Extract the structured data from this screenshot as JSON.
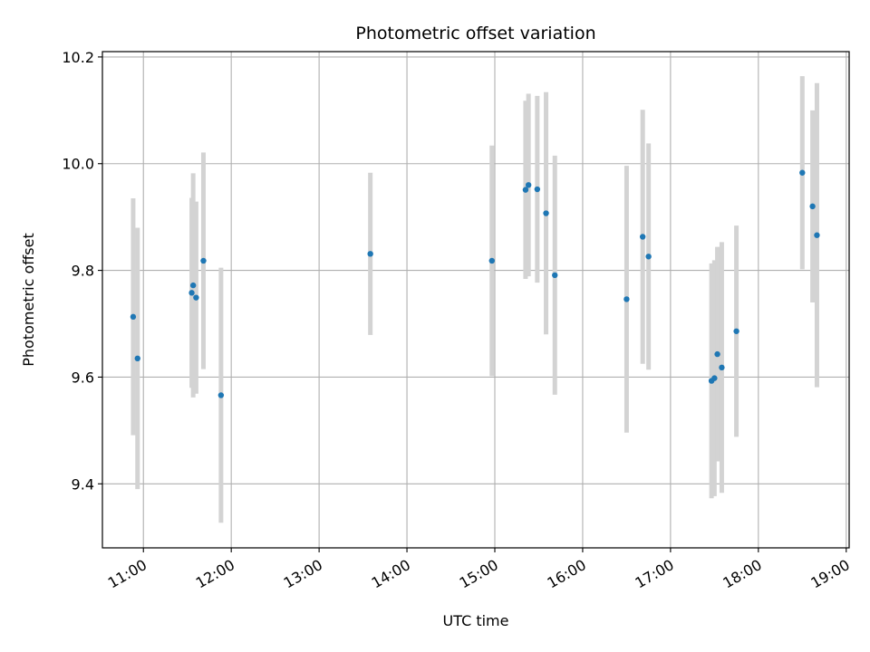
{
  "chart_data": {
    "type": "scatter",
    "title": "Photometric offset variation",
    "xlabel": "UTC time",
    "ylabel": "Photometric offset",
    "xlim": [
      "10:32",
      "19:02"
    ],
    "ylim": [
      9.28,
      10.21
    ],
    "x_ticks": [
      "11:00",
      "12:00",
      "13:00",
      "14:00",
      "15:00",
      "16:00",
      "17:00",
      "18:00",
      "19:00"
    ],
    "y_ticks": [
      9.4,
      9.6,
      9.8,
      10.0,
      10.2
    ],
    "y_tick_labels": [
      "9.4",
      "9.6",
      "9.8",
      "10.0",
      "10.2"
    ],
    "grid": true,
    "point_color": "#1f77b4",
    "errorbar_color": "#d3d3d3",
    "points": [
      {
        "x": "10:53",
        "y": 9.713,
        "yerr": 0.222
      },
      {
        "x": "10:56",
        "y": 9.635,
        "yerr": 0.245
      },
      {
        "x": "11:33",
        "y": 9.758,
        "yerr": 0.178
      },
      {
        "x": "11:34",
        "y": 9.772,
        "yerr": 0.21
      },
      {
        "x": "11:36",
        "y": 9.749,
        "yerr": 0.18
      },
      {
        "x": "11:41",
        "y": 9.818,
        "yerr": 0.203
      },
      {
        "x": "11:53",
        "y": 9.566,
        "yerr": 0.239
      },
      {
        "x": "13:35",
        "y": 9.831,
        "yerr": 0.152
      },
      {
        "x": "14:58",
        "y": 9.818,
        "yerr": 0.216
      },
      {
        "x": "15:21",
        "y": 9.951,
        "yerr": 0.167
      },
      {
        "x": "15:23",
        "y": 9.96,
        "yerr": 0.171
      },
      {
        "x": "15:29",
        "y": 9.952,
        "yerr": 0.175
      },
      {
        "x": "15:35",
        "y": 9.907,
        "yerr": 0.227
      },
      {
        "x": "15:41",
        "y": 9.791,
        "yerr": 0.224
      },
      {
        "x": "16:30",
        "y": 9.746,
        "yerr": 0.25
      },
      {
        "x": "16:41",
        "y": 9.863,
        "yerr": 0.238
      },
      {
        "x": "16:45",
        "y": 9.826,
        "yerr": 0.212
      },
      {
        "x": "17:28",
        "y": 9.593,
        "yerr": 0.22
      },
      {
        "x": "17:30",
        "y": 9.598,
        "yerr": 0.221
      },
      {
        "x": "17:32",
        "y": 9.643,
        "yerr": 0.201
      },
      {
        "x": "17:35",
        "y": 9.618,
        "yerr": 0.235
      },
      {
        "x": "17:45",
        "y": 9.686,
        "yerr": 0.198
      },
      {
        "x": "18:30",
        "y": 9.983,
        "yerr": 0.181
      },
      {
        "x": "18:37",
        "y": 9.92,
        "yerr": 0.18
      },
      {
        "x": "18:40",
        "y": 9.866,
        "yerr": 0.285
      }
    ]
  }
}
